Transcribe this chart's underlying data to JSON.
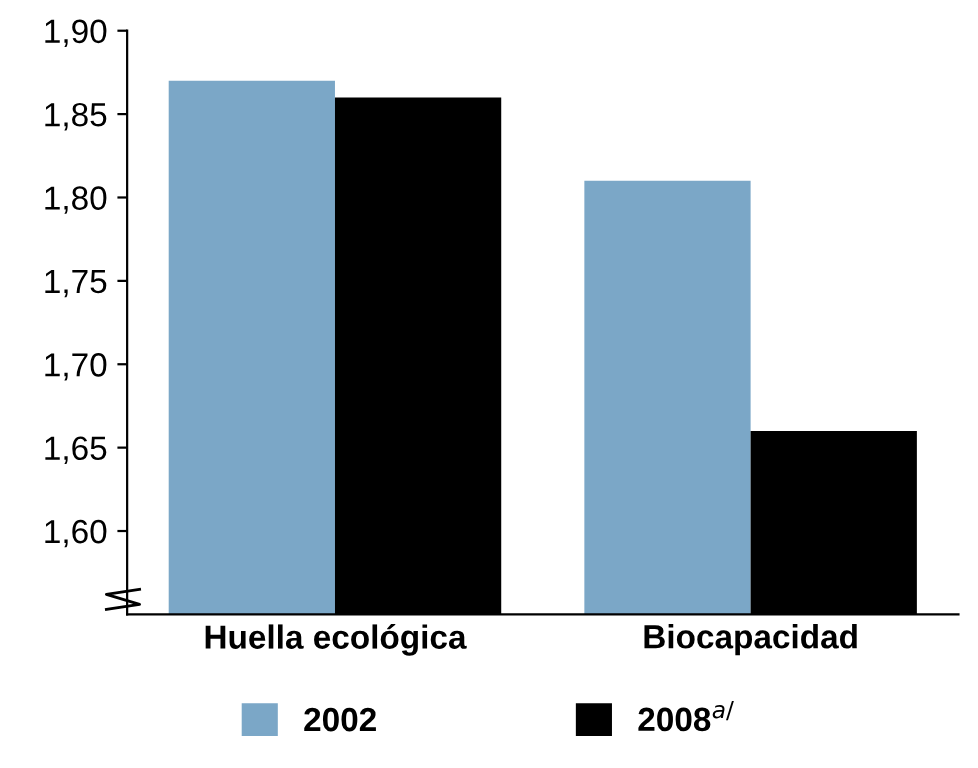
{
  "chart_data": {
    "type": "bar",
    "categories": [
      "Huella ecológica",
      "Biocapacidad"
    ],
    "series": [
      {
        "name": "2002",
        "color": "#7ba7c7",
        "values": [
          1.87,
          1.81
        ]
      },
      {
        "name": "2008$^{a/}$",
        "color": "#000000",
        "values": [
          1.86,
          1.66
        ]
      }
    ],
    "ylim": [
      1.55,
      1.9
    ],
    "yticks": [
      {
        "value": 1.6,
        "label": "1,60"
      },
      {
        "value": 1.65,
        "label": "1,65"
      },
      {
        "value": 1.7,
        "label": "1,70"
      },
      {
        "value": 1.75,
        "label": "1,75"
      },
      {
        "value": 1.8,
        "label": "1,80"
      },
      {
        "value": 1.85,
        "label": "1,85"
      },
      {
        "value": 1.9,
        "label": "1,90"
      }
    ],
    "grid": false,
    "legend": "bottom"
  }
}
